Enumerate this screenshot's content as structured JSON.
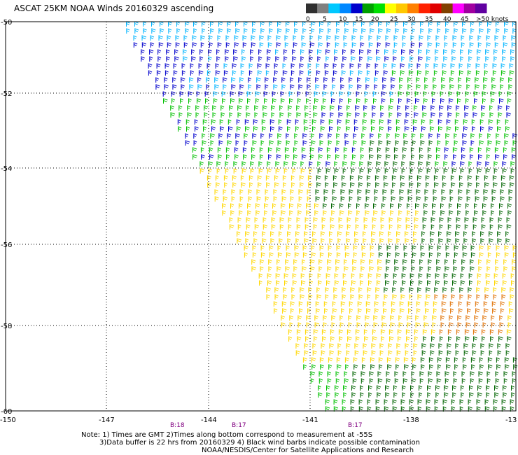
{
  "title": "ASCAT 25KM NOAA Winds 20160329 ascending",
  "colorbar": {
    "labels": [
      "0",
      "5",
      "10",
      "15",
      "20",
      "25",
      "30",
      "35",
      "40",
      "45",
      ">50 knots"
    ],
    "colors": [
      "#303030",
      "#808080",
      "#00c8ff",
      "#0088ff",
      "#0000cc",
      "#00a000",
      "#00e000",
      "#ffff00",
      "#ffc800",
      "#ff8000",
      "#ff2000",
      "#e00000",
      "#804000",
      "#ff00ff",
      "#a000a0",
      "#6000a0"
    ]
  },
  "axes": {
    "lat_labels": [
      "-50",
      "-52",
      "-54",
      "-56",
      "-58",
      "-60"
    ],
    "lon_labels": [
      "-150",
      "-147",
      "-144",
      "-141",
      "-138",
      "-13"
    ]
  },
  "pass_times": [
    "B:18",
    "B:17",
    "B:17"
  ],
  "notes": {
    "line1": "Note: 1) Times are GMT 2)Times along bottom correspond to measurement at -55S",
    "line2": "3)Data buffer is 22 hrs from 20160329 4) Black wind barbs indicate possible contamination",
    "line3": "NOAA/NESDIS/Center for Satellite Applications and Research"
  },
  "wind_colors": {
    "light_blue": "#00b4ff",
    "blue": "#0000cc",
    "green": "#00c000",
    "dark_green": "#006400",
    "yellow": "#ffd700",
    "orange": "#e07000"
  }
}
